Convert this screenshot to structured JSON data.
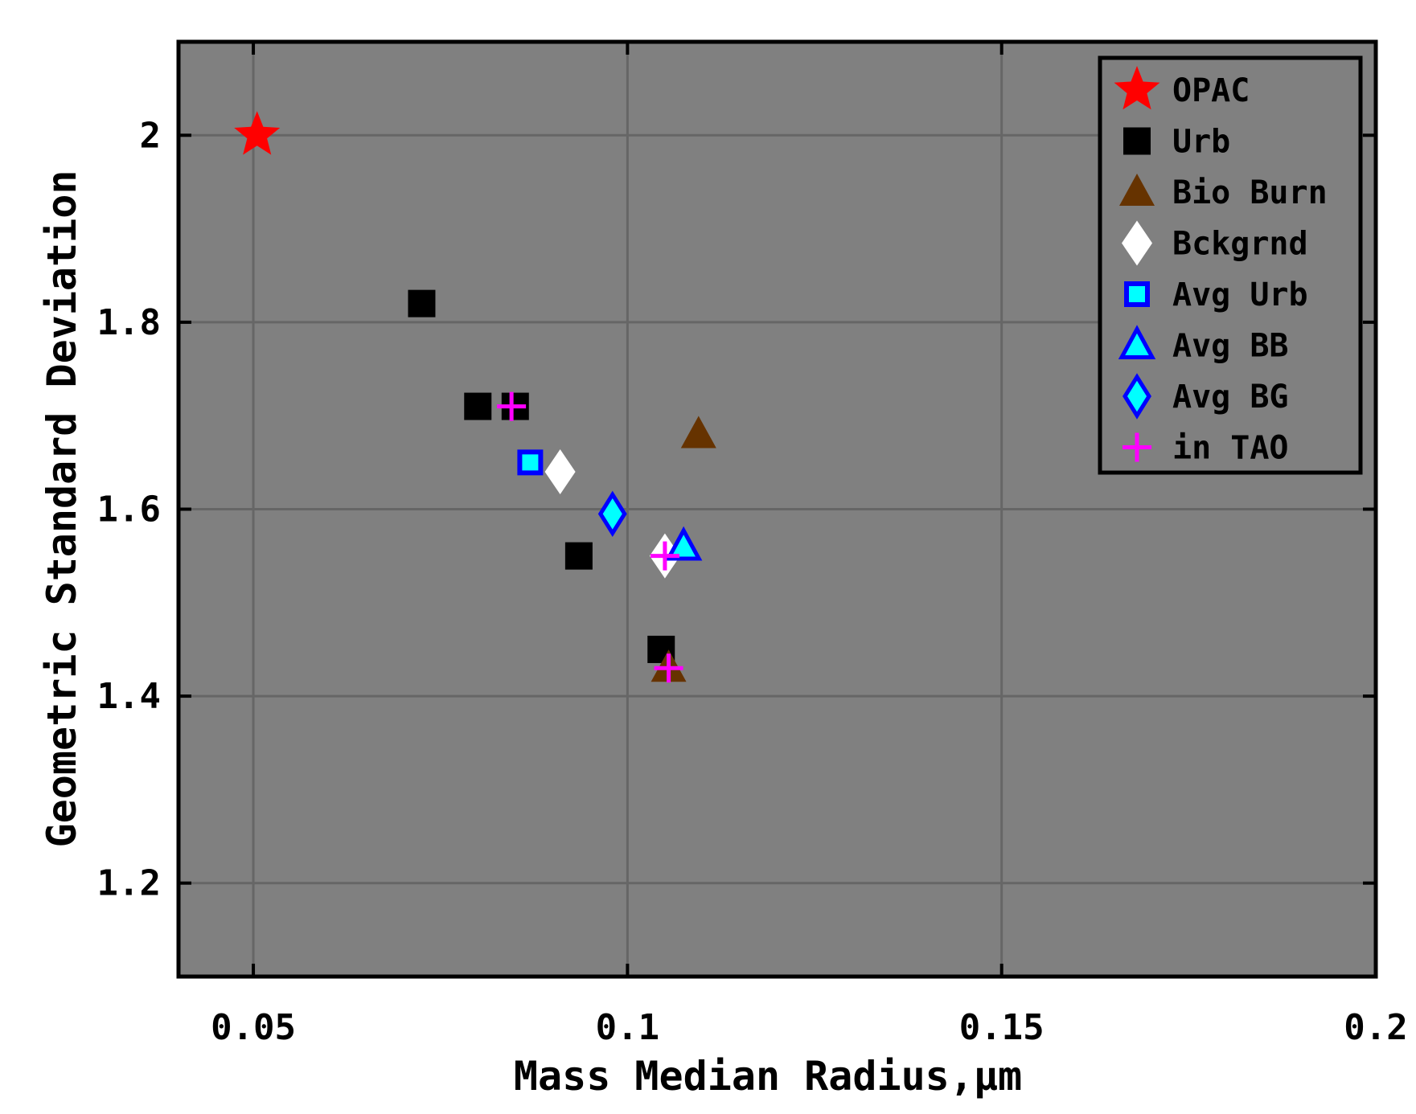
{
  "chart_data": {
    "type": "scatter",
    "xlabel": "Mass Median Radius,μm",
    "ylabel": "Geometric Standard Deviation",
    "xlim": [
      0.04,
      0.2
    ],
    "ylim": [
      1.1,
      2.1
    ],
    "x_ticks": [
      0.05,
      0.1,
      0.15,
      0.2
    ],
    "x_tick_labels": [
      "0.05",
      "0.1",
      "0.15",
      "0.2"
    ],
    "y_ticks": [
      1.2,
      1.4,
      1.6,
      1.8,
      2.0
    ],
    "y_tick_labels": [
      "1.2",
      "1.4",
      "1.6",
      "1.8",
      "2"
    ],
    "grid": true,
    "legend_position": "top-right",
    "plot_background": "#808080",
    "series": [
      {
        "name": "OPAC",
        "marker": "star",
        "color": "#ff0000",
        "edge": "#ff0000",
        "points": [
          [
            0.0505,
            2.0
          ]
        ]
      },
      {
        "name": "Urb",
        "marker": "square",
        "color": "#000000",
        "edge": "#000000",
        "points": [
          [
            0.0725,
            1.82
          ],
          [
            0.08,
            1.71
          ],
          [
            0.085,
            1.71
          ],
          [
            0.0935,
            1.55
          ],
          [
            0.1045,
            1.45
          ]
        ]
      },
      {
        "name": "Bio Burn",
        "marker": "triangle",
        "color": "#663300",
        "edge": "#663300",
        "points": [
          [
            0.1095,
            1.68
          ],
          [
            0.1055,
            1.43
          ]
        ]
      },
      {
        "name": "Bckgrnd",
        "marker": "diamond",
        "color": "#ffffff",
        "edge": "#ffffff",
        "points": [
          [
            0.091,
            1.64
          ],
          [
            0.105,
            1.55
          ]
        ]
      },
      {
        "name": "Avg Urb",
        "marker": "square-open",
        "color": "#00ffff",
        "edge": "#0000ff",
        "points": [
          [
            0.087,
            1.65
          ]
        ]
      },
      {
        "name": "Avg BB",
        "marker": "triangle-open",
        "color": "#00ffff",
        "edge": "#0000ff",
        "points": [
          [
            0.1075,
            1.56
          ]
        ]
      },
      {
        "name": "Avg BG",
        "marker": "diamond-open",
        "color": "#00ffff",
        "edge": "#0000ff",
        "points": [
          [
            0.098,
            1.595
          ]
        ]
      },
      {
        "name": "in TAO",
        "marker": "plus",
        "color": "#ff00ff",
        "edge": "#ff00ff",
        "points": [
          [
            0.0845,
            1.71
          ],
          [
            0.105,
            1.55
          ],
          [
            0.1055,
            1.43
          ]
        ]
      }
    ]
  }
}
